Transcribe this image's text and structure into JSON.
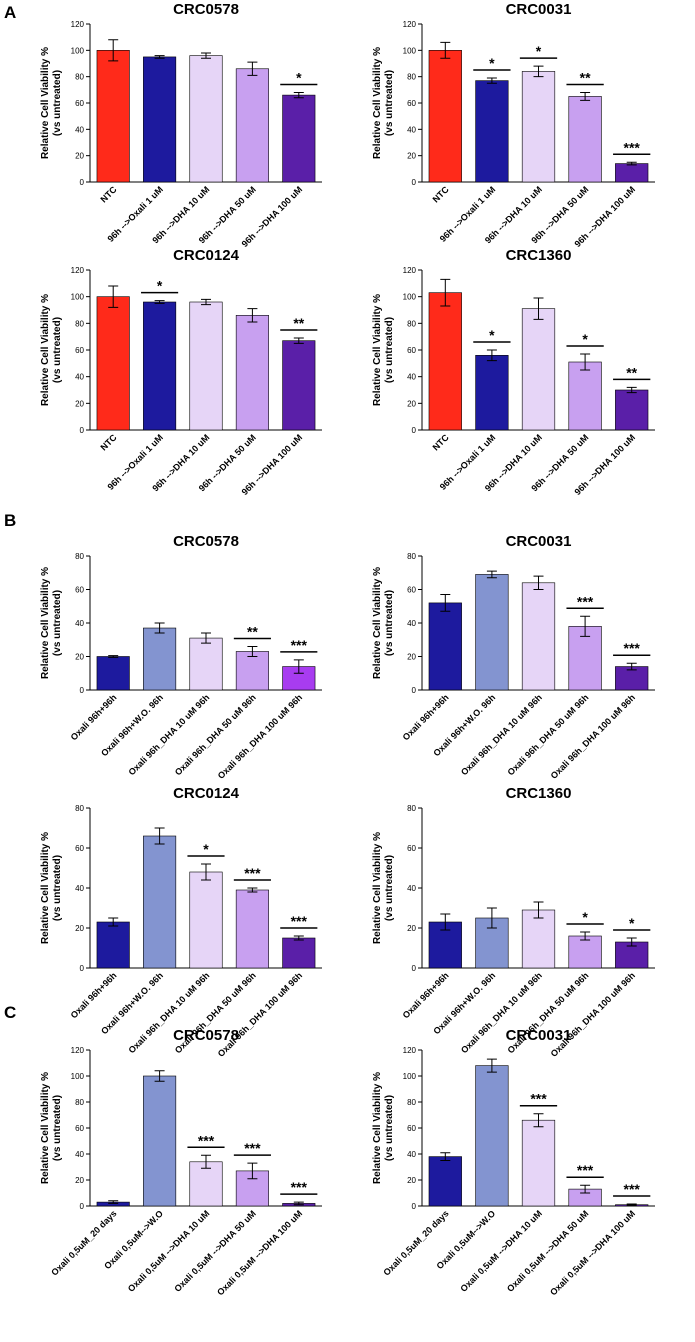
{
  "panel_labels": [
    "A",
    "B",
    "C"
  ],
  "chart_data": [
    {
      "type": "bar",
      "title": "CRC0578",
      "ylabel": [
        "Relative Cell Viability %",
        "(vs untreated)"
      ],
      "categories": [
        "NTC",
        "96h -->Oxali 1 uM",
        "96h -->DHA 10 uM",
        "96h -->DHA 50 uM",
        "96h -->DHA 100 uM"
      ],
      "values": [
        100,
        95,
        96,
        86,
        66
      ],
      "errors": [
        8,
        1,
        2,
        5,
        2
      ],
      "colors": [
        "#ff2a1a",
        "#1d1a9e",
        "#e6d5f7",
        "#c8a0f0",
        "#5a1fa8"
      ],
      "ylim": [
        0,
        120
      ],
      "yticks": [
        0,
        20,
        40,
        60,
        80,
        100,
        120
      ],
      "annotations": [
        {
          "index": 4,
          "text": "*"
        }
      ]
    },
    {
      "type": "bar",
      "title": "CRC0031",
      "ylabel": [
        "Relative Cell Viability %",
        "(vs untreated)"
      ],
      "categories": [
        "NTC",
        "96h -->Oxali 1 uM",
        "96h -->DHA 10 uM",
        "96h -->DHA 50 uM",
        "96h -->DHA 100 uM"
      ],
      "values": [
        100,
        77,
        84,
        65,
        14
      ],
      "errors": [
        6,
        2,
        4,
        3,
        1
      ],
      "colors": [
        "#ff2a1a",
        "#1d1a9e",
        "#e6d5f7",
        "#c8a0f0",
        "#5a1fa8"
      ],
      "ylim": [
        0,
        120
      ],
      "yticks": [
        0,
        20,
        40,
        60,
        80,
        100,
        120
      ],
      "annotations": [
        {
          "index": 1,
          "text": "*"
        },
        {
          "index": 2,
          "text": "*"
        },
        {
          "index": 3,
          "text": "**"
        },
        {
          "index": 4,
          "text": "***"
        }
      ]
    },
    {
      "type": "bar",
      "title": "CRC0124",
      "ylabel": [
        "Relative Cell Viability %",
        "(vs untreated)"
      ],
      "categories": [
        "NTC",
        "96h -->Oxali 1 uM",
        "96h -->DHA 10 uM",
        "96h -->DHA 50 uM",
        "96h -->DHA 100 uM"
      ],
      "values": [
        100,
        96,
        96,
        86,
        67
      ],
      "errors": [
        8,
        1,
        2,
        5,
        2
      ],
      "colors": [
        "#ff2a1a",
        "#1d1a9e",
        "#e6d5f7",
        "#c8a0f0",
        "#5a1fa8"
      ],
      "ylim": [
        0,
        120
      ],
      "yticks": [
        0,
        20,
        40,
        60,
        80,
        100,
        120
      ],
      "annotations": [
        {
          "index": 1,
          "text": "*"
        },
        {
          "index": 4,
          "text": "**"
        }
      ]
    },
    {
      "type": "bar",
      "title": "CRC1360",
      "ylabel": [
        "Relative Cell Viability %",
        "(vs untreated)"
      ],
      "categories": [
        "NTC",
        "96h -->Oxali 1 uM",
        "96h -->DHA 10 uM",
        "96h -->DHA 50 uM",
        "96h -->DHA 100 uM"
      ],
      "values": [
        103,
        56,
        91,
        51,
        30
      ],
      "errors": [
        10,
        4,
        8,
        6,
        2
      ],
      "colors": [
        "#ff2a1a",
        "#1d1a9e",
        "#e6d5f7",
        "#c8a0f0",
        "#5a1fa8"
      ],
      "ylim": [
        0,
        120
      ],
      "yticks": [
        0,
        20,
        40,
        60,
        80,
        100,
        120
      ],
      "annotations": [
        {
          "index": 1,
          "text": "*"
        },
        {
          "index": 3,
          "text": "*"
        },
        {
          "index": 4,
          "text": "**"
        }
      ]
    },
    {
      "type": "bar",
      "title": "CRC0578",
      "ylabel": [
        "Relative Cell Viability %",
        "(vs untreated)"
      ],
      "categories": [
        "Oxali 96h+96h",
        "Oxali 96h+W.O. 96h",
        "Oxali 96h_DHA 10 uM 96h",
        "Oxali 96h_DHA 50 uM 96h",
        "Oxali 96h_DHA 100 uM 96h"
      ],
      "values": [
        20,
        37,
        31,
        23,
        14
      ],
      "errors": [
        0.5,
        3,
        3,
        3,
        4
      ],
      "colors": [
        "#1d1a9e",
        "#8394d0",
        "#e6d5f7",
        "#c8a0f0",
        "#a83cf0"
      ],
      "ylim": [
        0,
        80
      ],
      "yticks": [
        0,
        20,
        40,
        60,
        80
      ],
      "annotations": [
        {
          "index": 3,
          "text": "**"
        },
        {
          "index": 4,
          "text": "***"
        }
      ]
    },
    {
      "type": "bar",
      "title": "CRC0031",
      "ylabel": [
        "Relative Cell Viability %",
        "(vs untreated)"
      ],
      "categories": [
        "Oxali 96h+96h",
        "Oxali 96h+W.O. 96h",
        "Oxali 96h_DHA 10 uM 96h",
        "Oxali 96h_DHA 50 uM 96h",
        "Oxali 96h_DHA 100 uM 96h"
      ],
      "values": [
        52,
        69,
        64,
        38,
        14
      ],
      "errors": [
        5,
        2,
        4,
        6,
        2
      ],
      "colors": [
        "#1d1a9e",
        "#8394d0",
        "#e6d5f7",
        "#c8a0f0",
        "#5a1fa8"
      ],
      "ylim": [
        0,
        80
      ],
      "yticks": [
        0,
        20,
        40,
        60,
        80
      ],
      "annotations": [
        {
          "index": 3,
          "text": "***"
        },
        {
          "index": 4,
          "text": "***"
        }
      ]
    },
    {
      "type": "bar",
      "title": "CRC0124",
      "ylabel": [
        "Relative Cell Viability %",
        "(vs untreated)"
      ],
      "categories": [
        "Oxali 96h+96h",
        "Oxali 96h+W.O. 96h",
        "Oxali 96h_DHA 10 uM 96h",
        "Oxali 96h_DHA 50 uM 96h",
        "Oxali 96h_DHA 100 uM 96h"
      ],
      "values": [
        23,
        66,
        48,
        39,
        15
      ],
      "errors": [
        2,
        4,
        4,
        1,
        1
      ],
      "colors": [
        "#1d1a9e",
        "#8394d0",
        "#e6d5f7",
        "#c8a0f0",
        "#5a1fa8"
      ],
      "ylim": [
        0,
        80
      ],
      "yticks": [
        0,
        20,
        40,
        60,
        80
      ],
      "annotations": [
        {
          "index": 2,
          "text": "*"
        },
        {
          "index": 3,
          "text": "***"
        },
        {
          "index": 4,
          "text": "***"
        }
      ]
    },
    {
      "type": "bar",
      "title": "CRC1360",
      "ylabel": [
        "Relative Cell Viability %",
        "(vs untreated)"
      ],
      "categories": [
        "Oxali 96h+96h",
        "Oxali 96h+W.O. 96h",
        "Oxali 96h_DHA 10 uM 96h",
        "Oxali 96h_DHA 50 uM 96h",
        "Oxali 96h_DHA 100 uM 96h"
      ],
      "values": [
        23,
        25,
        29,
        16,
        13
      ],
      "errors": [
        4,
        5,
        4,
        2,
        2
      ],
      "colors": [
        "#1d1a9e",
        "#8394d0",
        "#e6d5f7",
        "#c8a0f0",
        "#5a1fa8"
      ],
      "ylim": [
        0,
        80
      ],
      "yticks": [
        0,
        20,
        40,
        60,
        80
      ],
      "annotations": [
        {
          "index": 3,
          "text": "*"
        },
        {
          "index": 4,
          "text": "*"
        }
      ]
    },
    {
      "type": "bar",
      "title": "CRC0578",
      "ylabel": [
        "Relative Cell Viability %",
        "(vs untreated)"
      ],
      "categories": [
        "Oxali 0,5uM_20 days",
        "Oxali 0,5uM-->W.O",
        "Oxali 0,5uM -->DHA 10 uM",
        "Oxali 0,5uM -->DHA 50 uM",
        "Oxali 0,5uM -->DHA 100 uM"
      ],
      "values": [
        3,
        100,
        34,
        27,
        2
      ],
      "errors": [
        1,
        4,
        5,
        6,
        1
      ],
      "colors": [
        "#1d1a9e",
        "#8394d0",
        "#e6d5f7",
        "#c8a0f0",
        "#5a1fa8"
      ],
      "ylim": [
        0,
        120
      ],
      "yticks": [
        0,
        20,
        40,
        60,
        80,
        100,
        120
      ],
      "annotations": [
        {
          "index": 2,
          "text": "***"
        },
        {
          "index": 3,
          "text": "***"
        },
        {
          "index": 4,
          "text": "***"
        }
      ]
    },
    {
      "type": "bar",
      "title": "CRC0031",
      "ylabel": [
        "Relative Cell Viability %",
        "(vs untreated)"
      ],
      "categories": [
        "Oxali 0,5uM_20 days",
        "Oxali 0,5uM-->W.O",
        "Oxali 0,5uM -->DHA 10 uM",
        "Oxali 0,5uM -->DHA 50 uM",
        "Oxali 0,5uM -->DHA 100 uM"
      ],
      "values": [
        38,
        108,
        66,
        13,
        1
      ],
      "errors": [
        3,
        5,
        5,
        3,
        0.5
      ],
      "colors": [
        "#1d1a9e",
        "#8394d0",
        "#e6d5f7",
        "#c8a0f0",
        "#5a1fa8"
      ],
      "ylim": [
        0,
        120
      ],
      "yticks": [
        0,
        20,
        40,
        60,
        80,
        100,
        120
      ],
      "annotations": [
        {
          "index": 2,
          "text": "***"
        },
        {
          "index": 3,
          "text": "***"
        },
        {
          "index": 4,
          "text": "***"
        }
      ]
    }
  ]
}
